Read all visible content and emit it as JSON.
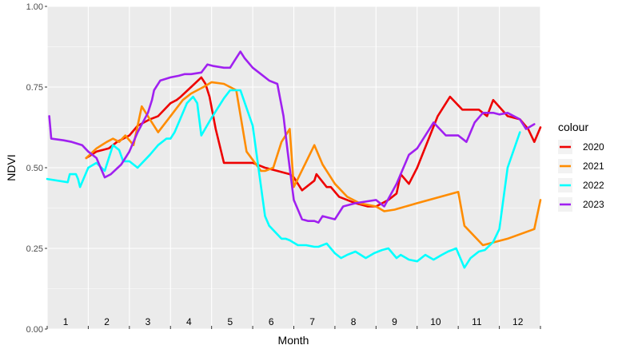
{
  "chart_data": {
    "type": "line",
    "xlabel": "Month",
    "ylabel": "NDVI",
    "ylim": [
      0,
      1
    ],
    "xlim": [
      0,
      12
    ],
    "y_ticks": [
      "0.00",
      "0.25",
      "0.50",
      "0.75",
      "1.00"
    ],
    "month_labels": [
      "1",
      "2",
      "3",
      "4",
      "5",
      "6",
      "7",
      "8",
      "9",
      "10",
      "11",
      "12"
    ],
    "legend_title": "colour",
    "legend_position": "right",
    "grid": true,
    "series": [
      {
        "name": "2020",
        "color": "#ee0000",
        "x": [
          0.95,
          1.2,
          1.5,
          1.7,
          2.0,
          2.2,
          2.5,
          2.7,
          3.0,
          3.15,
          3.25,
          3.5,
          3.75,
          3.85,
          3.95,
          4.1,
          4.3,
          4.45,
          4.6,
          5.0,
          5.3,
          5.6,
          5.9,
          6.0,
          6.2,
          6.5,
          6.55,
          6.8,
          6.9,
          7.1,
          7.5,
          7.8,
          8.0,
          8.3,
          8.5,
          8.6,
          8.8,
          9.0,
          9.5,
          9.8,
          10.1,
          10.3,
          10.5,
          10.7,
          10.85,
          11.2,
          11.5,
          11.7,
          11.85,
          12.0
        ],
        "y": [
          0.53,
          0.55,
          0.56,
          0.58,
          0.6,
          0.63,
          0.65,
          0.66,
          0.7,
          0.71,
          0.72,
          0.75,
          0.78,
          0.76,
          0.72,
          0.62,
          0.515,
          0.515,
          0.515,
          0.515,
          0.5,
          0.49,
          0.48,
          0.47,
          0.43,
          0.46,
          0.48,
          0.44,
          0.44,
          0.41,
          0.39,
          0.38,
          0.38,
          0.4,
          0.42,
          0.48,
          0.45,
          0.5,
          0.66,
          0.72,
          0.68,
          0.68,
          0.68,
          0.66,
          0.71,
          0.66,
          0.65,
          0.62,
          0.58,
          0.625
        ]
      },
      {
        "name": "2021",
        "color": "#ff8c00",
        "x": [
          0.95,
          1.2,
          1.45,
          1.6,
          1.75,
          1.9,
          2.1,
          2.3,
          2.5,
          2.7,
          3.0,
          3.3,
          3.5,
          3.8,
          4.0,
          4.3,
          4.6,
          4.85,
          5.2,
          5.3,
          5.4,
          5.5,
          5.7,
          5.9,
          6.0,
          6.5,
          6.7,
          6.85,
          7.0,
          7.3,
          7.6,
          7.8,
          8.0,
          8.2,
          8.45,
          9.0,
          10.0,
          10.15,
          10.6,
          11.2,
          11.85,
          12.0
        ],
        "y": [
          0.53,
          0.56,
          0.58,
          0.59,
          0.58,
          0.6,
          0.57,
          0.69,
          0.65,
          0.61,
          0.66,
          0.71,
          0.73,
          0.75,
          0.765,
          0.76,
          0.74,
          0.55,
          0.49,
          0.49,
          0.495,
          0.5,
          0.58,
          0.62,
          0.44,
          0.57,
          0.51,
          0.48,
          0.45,
          0.41,
          0.39,
          0.385,
          0.38,
          0.365,
          0.37,
          0.39,
          0.425,
          0.32,
          0.26,
          0.28,
          0.31,
          0.4
        ]
      },
      {
        "name": "2022",
        "color": "#00ffff",
        "x": [
          0.0,
          0.5,
          0.55,
          0.7,
          0.75,
          0.8,
          1.0,
          1.2,
          1.4,
          1.6,
          1.75,
          1.85,
          2.0,
          2.2,
          2.5,
          2.7,
          2.9,
          3.0,
          3.1,
          3.4,
          3.55,
          3.65,
          3.75,
          4.0,
          4.3,
          4.45,
          4.7,
          5.0,
          5.3,
          5.4,
          5.7,
          5.8,
          5.9,
          6.1,
          6.3,
          6.5,
          6.6,
          6.8,
          7.0,
          7.15,
          7.3,
          7.5,
          7.75,
          7.95,
          8.15,
          8.3,
          8.5,
          8.6,
          8.8,
          9.0,
          9.2,
          9.4,
          9.6,
          9.75,
          9.95,
          10.15,
          10.3,
          10.5,
          10.65,
          10.85,
          11.0,
          11.2,
          11.5
        ],
        "y": [
          0.465,
          0.455,
          0.48,
          0.48,
          0.465,
          0.44,
          0.5,
          0.515,
          0.49,
          0.57,
          0.555,
          0.52,
          0.52,
          0.5,
          0.54,
          0.57,
          0.59,
          0.59,
          0.61,
          0.7,
          0.72,
          0.7,
          0.6,
          0.655,
          0.715,
          0.74,
          0.74,
          0.63,
          0.35,
          0.32,
          0.28,
          0.28,
          0.275,
          0.26,
          0.26,
          0.255,
          0.255,
          0.265,
          0.235,
          0.22,
          0.23,
          0.24,
          0.22,
          0.235,
          0.245,
          0.25,
          0.22,
          0.23,
          0.215,
          0.21,
          0.23,
          0.215,
          0.23,
          0.24,
          0.25,
          0.19,
          0.22,
          0.24,
          0.245,
          0.27,
          0.31,
          0.5,
          0.61
        ]
      },
      {
        "name": "2023",
        "color": "#a020f0",
        "x": [
          0.05,
          0.1,
          0.4,
          0.6,
          0.85,
          1.0,
          1.2,
          1.4,
          1.55,
          1.8,
          2.0,
          2.2,
          2.45,
          2.55,
          2.6,
          2.75,
          3.0,
          3.2,
          3.35,
          3.5,
          3.75,
          3.9,
          4.05,
          4.3,
          4.45,
          4.55,
          4.7,
          4.8,
          5.0,
          5.2,
          5.4,
          5.6,
          5.75,
          5.85,
          6.0,
          6.2,
          6.35,
          6.5,
          6.6,
          6.7,
          7.0,
          7.2,
          7.5,
          8.0,
          8.2,
          8.5,
          8.8,
          9.0,
          9.4,
          9.7,
          10.0,
          10.2,
          10.4,
          10.6,
          10.85,
          11.0,
          11.2,
          11.5,
          11.65,
          11.85
        ],
        "y": [
          0.66,
          0.59,
          0.585,
          0.58,
          0.57,
          0.55,
          0.53,
          0.47,
          0.48,
          0.51,
          0.55,
          0.61,
          0.67,
          0.71,
          0.74,
          0.77,
          0.78,
          0.785,
          0.79,
          0.79,
          0.795,
          0.82,
          0.815,
          0.81,
          0.81,
          0.83,
          0.86,
          0.84,
          0.81,
          0.79,
          0.77,
          0.76,
          0.66,
          0.55,
          0.4,
          0.34,
          0.335,
          0.335,
          0.33,
          0.35,
          0.34,
          0.38,
          0.39,
          0.4,
          0.38,
          0.45,
          0.54,
          0.56,
          0.64,
          0.6,
          0.6,
          0.58,
          0.64,
          0.67,
          0.67,
          0.665,
          0.67,
          0.65,
          0.62,
          0.635
        ]
      }
    ]
  }
}
